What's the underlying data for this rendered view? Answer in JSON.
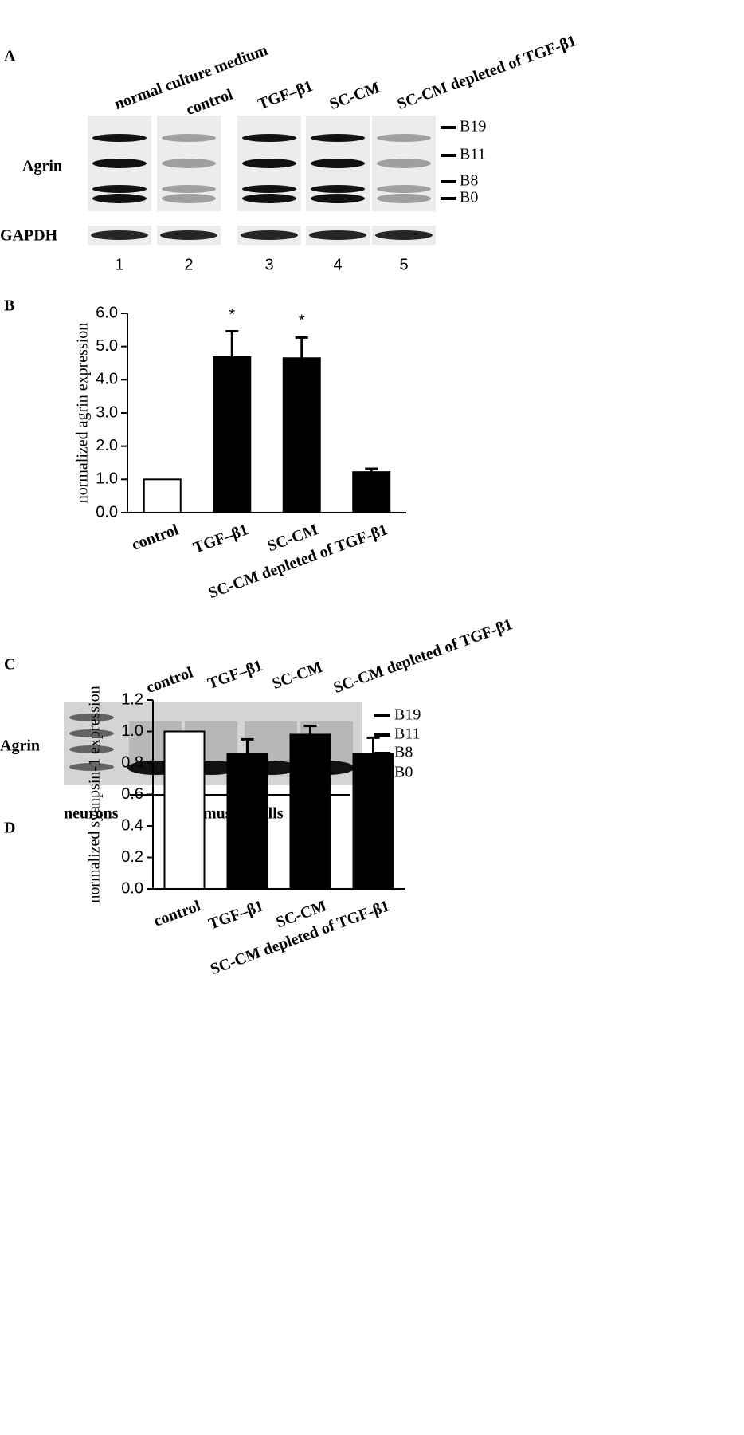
{
  "panel_a": {
    "label": "A",
    "group_header": "normal culture medium",
    "lane_headers": [
      "control",
      "TGF–β1",
      "SC-CM",
      "SC-CM depleted of TGF-β1"
    ],
    "row_labels": [
      "Agrin",
      "GAPDH"
    ],
    "band_labels": [
      "B19",
      "B11",
      "B8",
      "B0"
    ],
    "lane_numbers": [
      "1",
      "2",
      "3",
      "4",
      "5"
    ]
  },
  "panel_c": {
    "label": "C",
    "lane_headers": [
      "control",
      "TGF–β1",
      "SC-CM",
      "SC-CM depleted of TGF-β1"
    ],
    "row_label": "Agrin",
    "band_labels": [
      "B19",
      "B11",
      "B8",
      "B0"
    ],
    "group_labels": [
      "neurons",
      "muscle cells"
    ]
  },
  "chart_data": [
    {
      "type": "bar",
      "label": "B",
      "y_label": "normalized agrin expression",
      "categories": [
        "control",
        "TGF–β1",
        "SC-CM",
        "SC-CM depleted of TGF-β1"
      ],
      "values": [
        1.0,
        4.68,
        4.65,
        1.22
      ],
      "errors": [
        null,
        0.78,
        0.62,
        0.1
      ],
      "colors": [
        "#ffffff",
        "#000000",
        "#000000",
        "#000000"
      ],
      "annotations": [
        null,
        "*",
        "*",
        null
      ],
      "ylim": [
        0,
        6
      ],
      "yticks": [
        {
          "value": 0,
          "label": "0.0"
        },
        {
          "value": 1,
          "label": "1.0"
        },
        {
          "value": 2,
          "label": "2.0"
        },
        {
          "value": 3,
          "label": "3.0"
        },
        {
          "value": 4,
          "label": "4.0"
        },
        {
          "value": 5,
          "label": "5.0"
        },
        {
          "value": 6,
          "label": "6.0"
        }
      ]
    },
    {
      "type": "bar",
      "label": "D",
      "y_label": "normalized syanpsin-1 expression",
      "categories": [
        "control",
        "TGF–β1",
        "SC-CM",
        "SC-CM depleted of TGF-β1"
      ],
      "values": [
        1.0,
        0.86,
        0.98,
        0.86
      ],
      "errors": [
        null,
        0.09,
        0.055,
        0.1
      ],
      "colors": [
        "#ffffff",
        "#000000",
        "#000000",
        "#000000"
      ],
      "ylim": [
        0,
        1.2
      ],
      "yticks": [
        {
          "value": 0,
          "label": "0.0"
        },
        0.2,
        0.4,
        0.6,
        0.8,
        {
          "value": 1,
          "label": "1.0"
        },
        1.2
      ]
    }
  ]
}
